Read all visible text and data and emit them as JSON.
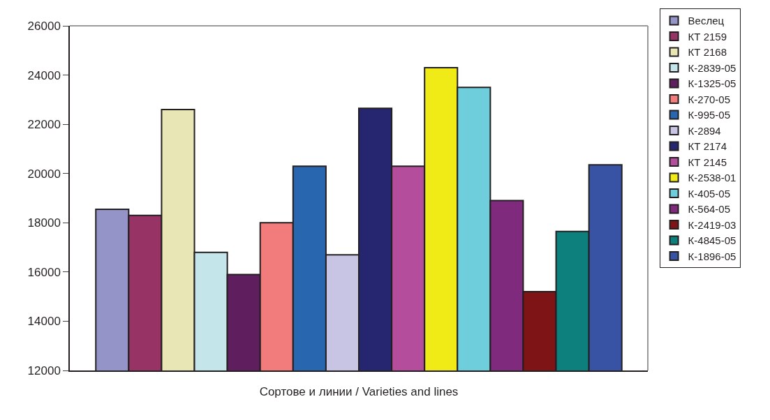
{
  "chart_data": {
    "type": "bar",
    "xlabel": "Сортове и линии / Varieties and lines",
    "categories": [
      null
    ],
    "series": [
      {
        "name": "Веслец",
        "color": "#9494c8",
        "values": [
          18550
        ]
      },
      {
        "name": "КТ 2159",
        "color": "#983366",
        "values": [
          18300
        ]
      },
      {
        "name": "КТ 2168",
        "color": "#e8e6b4",
        "values": [
          22600
        ]
      },
      {
        "name": "К-2839-05",
        "color": "#c4e6ea",
        "values": [
          16800
        ]
      },
      {
        "name": "К-1325-05",
        "color": "#5f1f5f",
        "values": [
          15900
        ]
      },
      {
        "name": "К-270-05",
        "color": "#f27b7b",
        "values": [
          18000
        ]
      },
      {
        "name": "К-995-05",
        "color": "#2866b0",
        "values": [
          20300
        ]
      },
      {
        "name": "К-2894",
        "color": "#c8c4e4",
        "values": [
          16700
        ]
      },
      {
        "name": "КТ 2174",
        "color": "#262670",
        "values": [
          22650
        ]
      },
      {
        "name": "КТ 2145",
        "color": "#b44e9c",
        "values": [
          20300
        ]
      },
      {
        "name": "К-2538-01",
        "color": "#f0ea16",
        "values": [
          24300
        ]
      },
      {
        "name": "К-405-05",
        "color": "#6ecedc",
        "values": [
          23500
        ]
      },
      {
        "name": "К-564-05",
        "color": "#7f2a7c",
        "values": [
          18900
        ]
      },
      {
        "name": "К-2419-03",
        "color": "#7f1416",
        "values": [
          15200
        ]
      },
      {
        "name": "К-4845-05",
        "color": "#0d7f7d",
        "values": [
          17650
        ]
      },
      {
        "name": "К-1896-05",
        "color": "#3853a4",
        "values": [
          20350
        ]
      }
    ],
    "ylim": [
      12000,
      26000
    ],
    "yticks": [
      12000,
      14000,
      16000,
      18000,
      20000,
      22000,
      24000,
      26000
    ],
    "legend": "right"
  }
}
